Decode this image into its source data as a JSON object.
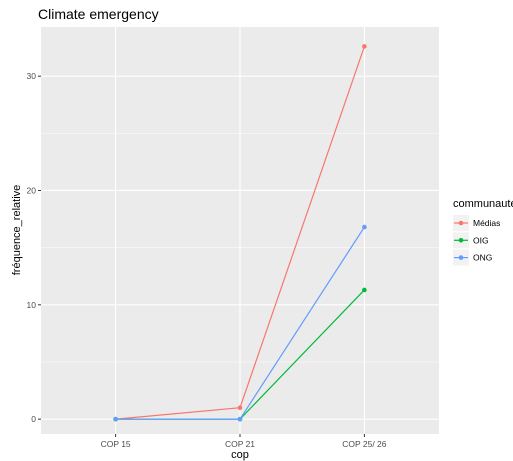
{
  "chart_data": {
    "type": "line",
    "title": "Climate emergency",
    "xlabel": "cop",
    "ylabel": "fréquence_relative",
    "categories": [
      "COP 15",
      "COP 21",
      "COP 25/ 26"
    ],
    "ylim": [
      -1.3,
      34.3
    ],
    "yticks": [
      0,
      10,
      20,
      30
    ],
    "grid": true,
    "legend": {
      "title": "communauté",
      "position": "right"
    },
    "series": [
      {
        "name": "Médias",
        "color": "#F8766D",
        "values": [
          0.0,
          1.0,
          32.6
        ]
      },
      {
        "name": "OIG",
        "color": "#00BA38",
        "values": [
          0.0,
          0.0,
          11.3
        ]
      },
      {
        "name": "ONG",
        "color": "#619CFF",
        "values": [
          0.0,
          0.0,
          16.8
        ]
      }
    ]
  }
}
